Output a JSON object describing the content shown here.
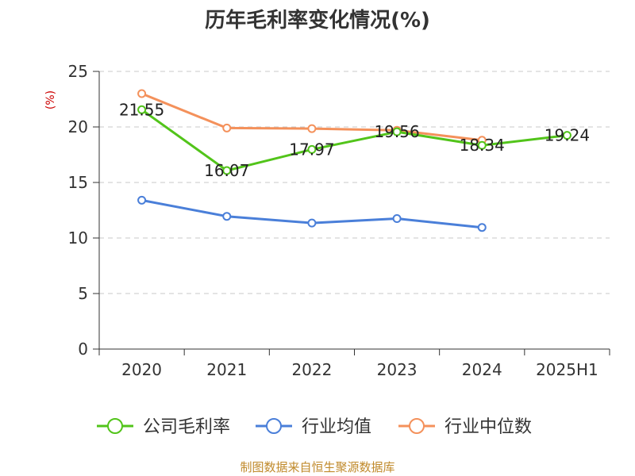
{
  "chart_data": {
    "type": "line",
    "title": "历年毛利率变化情况(%)",
    "ylabel": "(%)",
    "categories": [
      "2020",
      "2021",
      "2022",
      "2023",
      "2024",
      "2025H1"
    ],
    "yticks": [
      "0",
      "5",
      "10",
      "15",
      "20",
      "25"
    ],
    "ylim": [
      0,
      25
    ],
    "grid": true,
    "legend_position": "bottom",
    "series": [
      {
        "name": "公司毛利率",
        "color": "#52c41a",
        "values": [
          21.55,
          16.07,
          17.97,
          19.56,
          18.34,
          19.24
        ],
        "labels": [
          "21.55",
          "16.07",
          "17.97",
          "19.56",
          "18.34",
          "19.24"
        ]
      },
      {
        "name": "行业均值",
        "color": "#4a7fd9",
        "values": [
          13.4,
          11.95,
          11.35,
          11.75,
          10.95,
          null
        ]
      },
      {
        "name": "行业中位数",
        "color": "#f4915b",
        "values": [
          23.0,
          19.9,
          19.85,
          19.7,
          18.8,
          null
        ]
      }
    ]
  },
  "footer": "制图数据来自恒生聚源数据库"
}
